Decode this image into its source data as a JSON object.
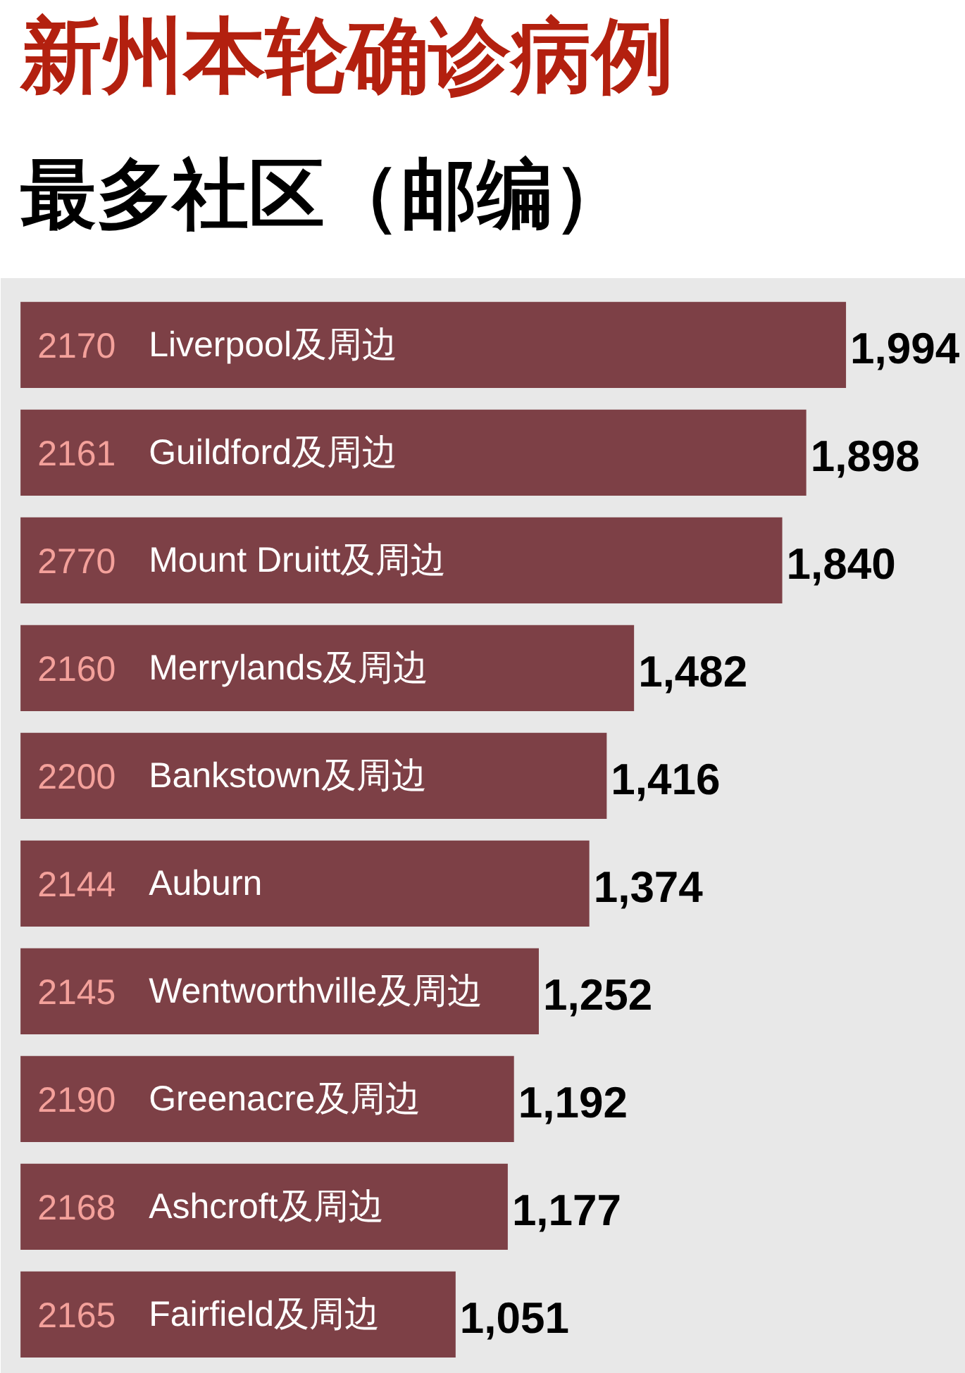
{
  "chart_data": {
    "type": "bar",
    "orientation": "horizontal",
    "title": "新州本轮确诊病例",
    "subtitle": "最多社区（邮编）",
    "categories": [
      "2170 Liverpool及周边",
      "2161 Guildford及周边",
      "2770 Mount Druitt及周边",
      "2160 Merrylands及周边",
      "2200 Bankstown及周边",
      "2144 Auburn",
      "2145 Wentworthville及周边",
      "2190 Greenacre及周边",
      "2168 Ashcroft及周边",
      "2165 Fairfield及周边"
    ],
    "values": [
      1994,
      1898,
      1840,
      1482,
      1416,
      1374,
      1252,
      1192,
      1177,
      1051
    ],
    "value_labels": [
      "1,994",
      "1,898",
      "1,840",
      "1,482",
      "1,416",
      "1,374",
      "1,252",
      "1,192",
      "1,177",
      "1,051"
    ],
    "color": "#7d4046",
    "tick_labels": "y"
  }
}
